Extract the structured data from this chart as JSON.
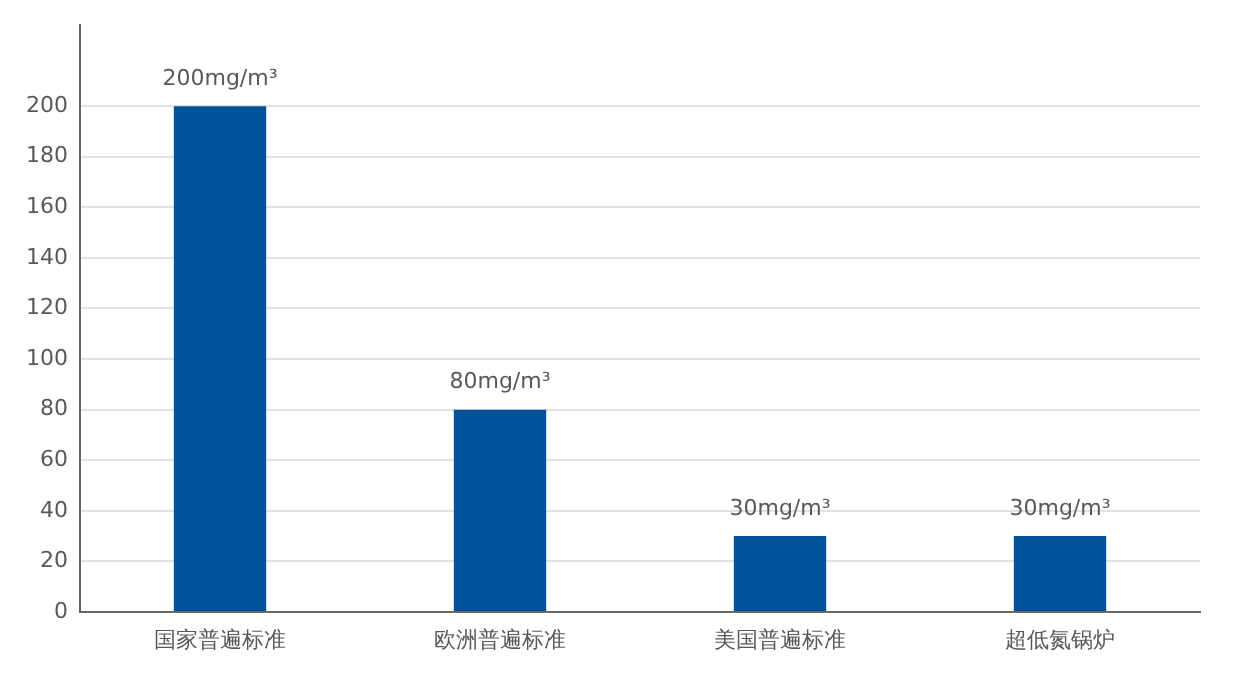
{
  "chart_data": {
    "type": "bar",
    "categories": [
      "国家普遍标准",
      "欧洲普遍标准",
      "美国普遍标准",
      "超低氮锅炉"
    ],
    "values": [
      200,
      80,
      30,
      30
    ],
    "color": "#00539b",
    "value_labels": [
      "200mg/m³",
      "80mg/m³",
      "30mg/m³",
      "30mg/m³"
    ],
    "ylim": [
      0,
      232
    ],
    "yticks": [
      0,
      20,
      40,
      60,
      80,
      100,
      120,
      140,
      160,
      180,
      200
    ],
    "grid": "y",
    "legend": false
  }
}
